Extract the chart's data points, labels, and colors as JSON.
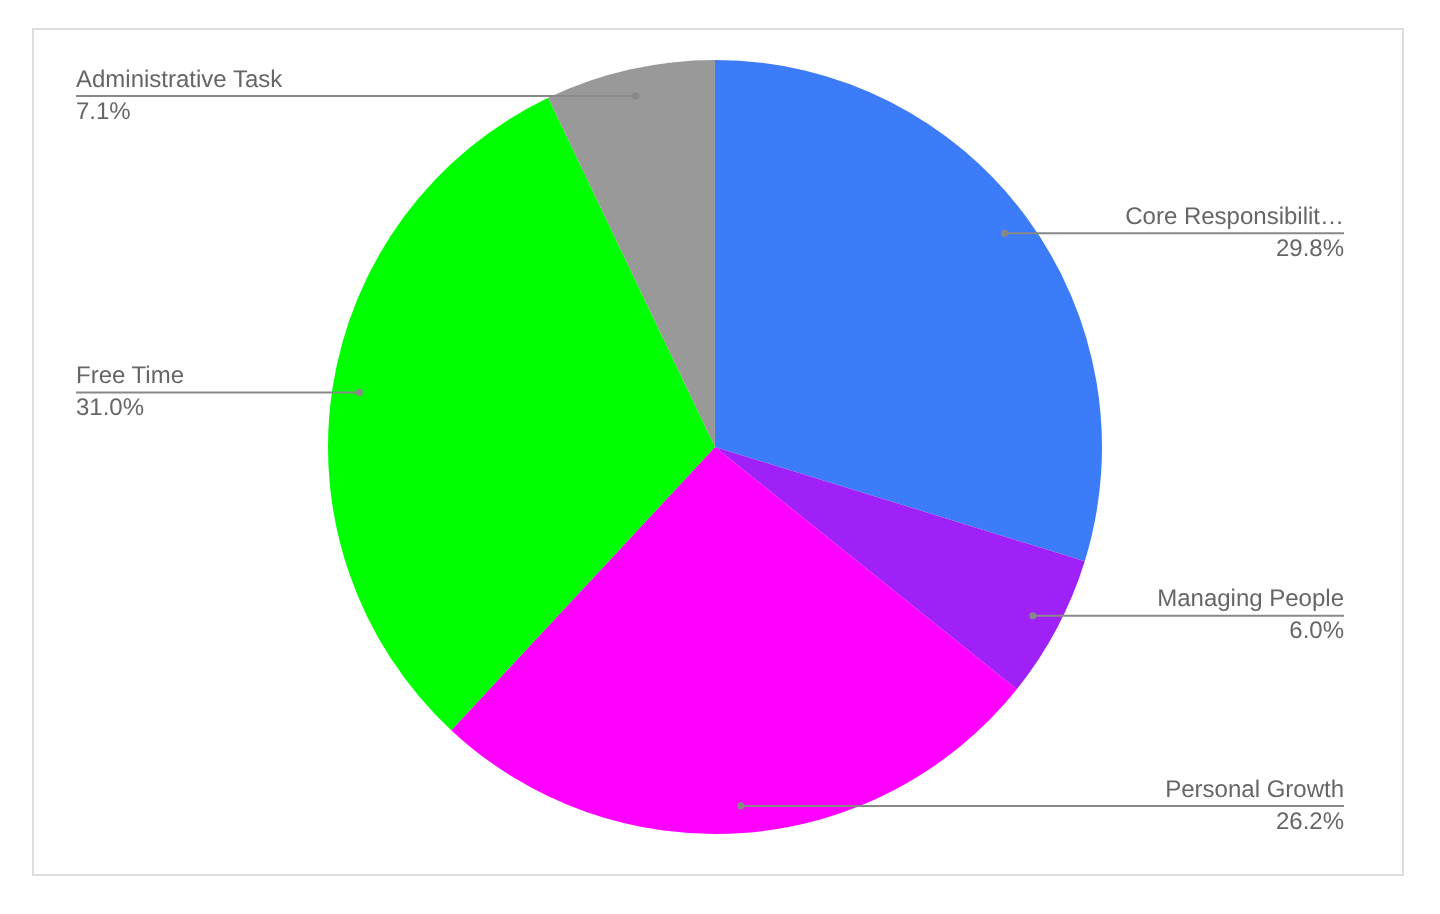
{
  "chart_data": {
    "type": "pie",
    "categories": [
      "Core Responsibilit…",
      "Managing People",
      "Personal Growth",
      "Free Time",
      "Administrative Task"
    ],
    "values": [
      29.8,
      6.0,
      26.2,
      31.0,
      7.1
    ],
    "value_labels": [
      "29.8%",
      "6.0%",
      "26.2%",
      "31.0%",
      "7.1%"
    ],
    "colors": [
      "#3d7cf8",
      "#a020f8",
      "#ff00ff",
      "#00ff00",
      "#999999"
    ],
    "legend": false
  }
}
